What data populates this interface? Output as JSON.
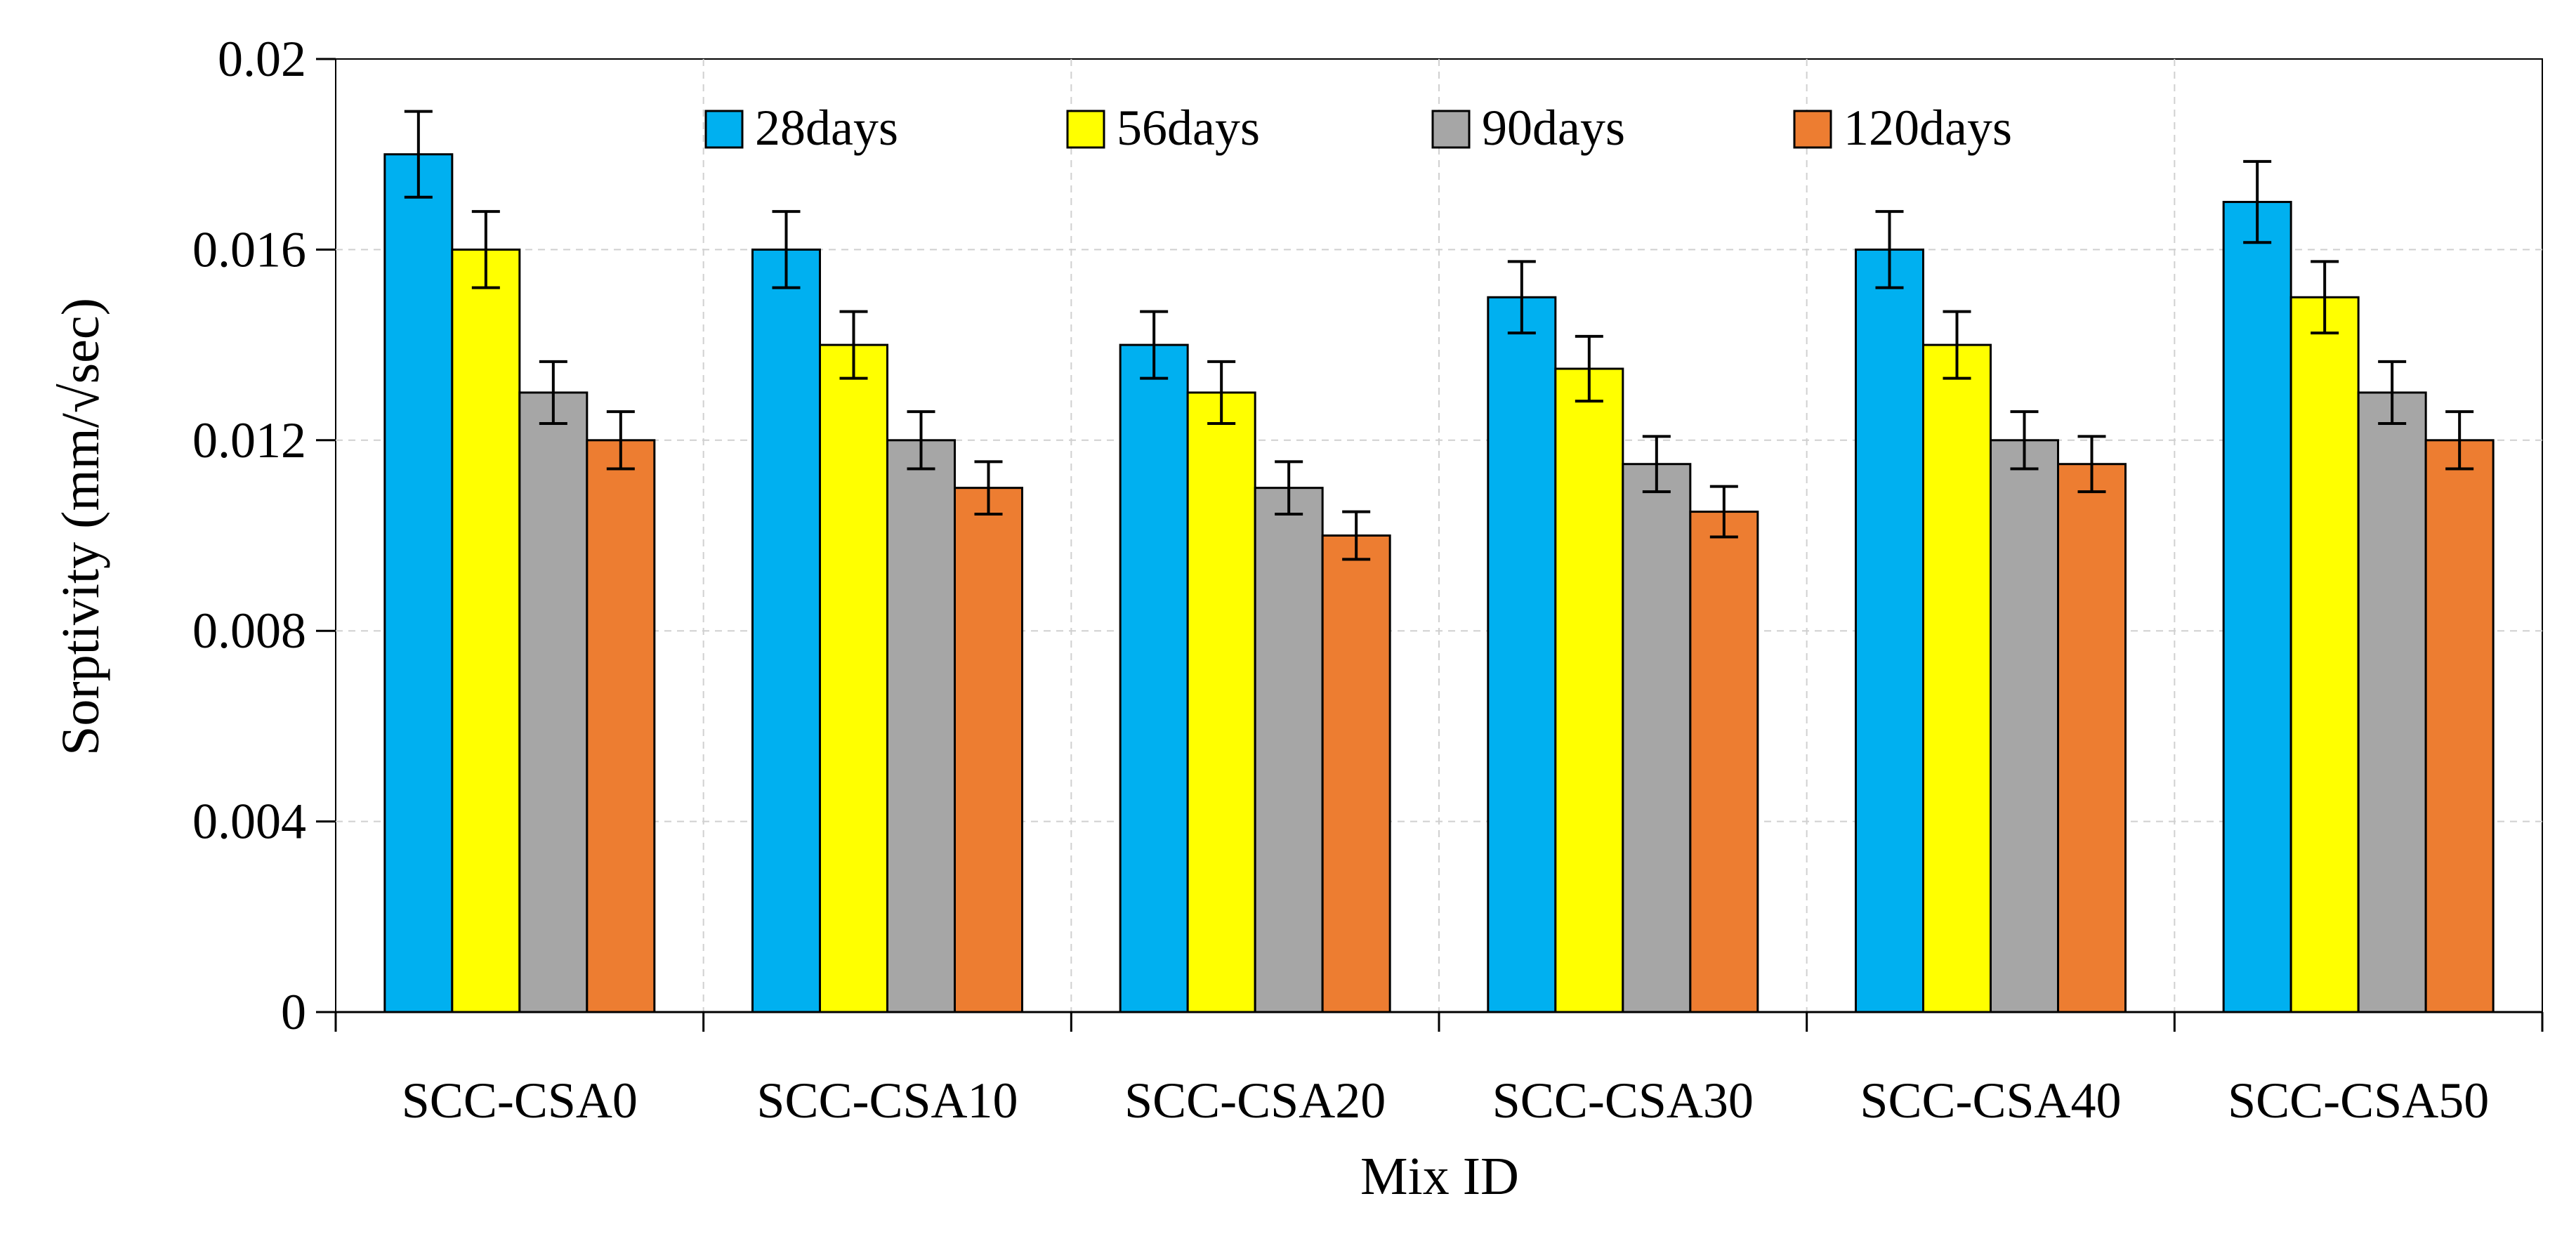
{
  "chart_data": {
    "type": "bar",
    "title": "",
    "xlabel": "Mix ID",
    "ylabel": "Sorptivity (mm/√sec)",
    "ylim": [
      0,
      0.02
    ],
    "yticks": [
      "0",
      "0.004",
      "0.008",
      "0.012",
      "0.016",
      "0.02"
    ],
    "ytick_values": [
      0,
      0.004,
      0.008,
      0.012,
      0.016,
      0.02
    ],
    "grid": true,
    "legend_position": "top",
    "categories": [
      "SCC-CSA0",
      "SCC-CSA10",
      "SCC-CSA20",
      "SCC-CSA30",
      "SCC-CSA40",
      "SCC-CSA50"
    ],
    "series": [
      {
        "name": "28days",
        "color": "#00B0F0",
        "values": [
          0.018,
          0.016,
          0.014,
          0.015,
          0.016,
          0.017
        ],
        "errors": [
          0.0009,
          0.0008,
          0.0007,
          0.00075,
          0.0008,
          0.00085
        ]
      },
      {
        "name": "56days",
        "color": "#FFFF00",
        "values": [
          0.016,
          0.014,
          0.013,
          0.0135,
          0.014,
          0.015
        ],
        "errors": [
          0.0008,
          0.0007,
          0.00065,
          0.00068,
          0.0007,
          0.00075
        ]
      },
      {
        "name": "90days",
        "color": "#A6A6A6",
        "values": [
          0.013,
          0.012,
          0.011,
          0.0115,
          0.012,
          0.013
        ],
        "errors": [
          0.00065,
          0.0006,
          0.00055,
          0.00058,
          0.0006,
          0.00065
        ]
      },
      {
        "name": "120days",
        "color": "#ED7D31",
        "values": [
          0.012,
          0.011,
          0.01,
          0.0105,
          0.0115,
          0.012
        ],
        "errors": [
          0.0006,
          0.00055,
          0.0005,
          0.00053,
          0.00058,
          0.0006
        ]
      }
    ]
  }
}
